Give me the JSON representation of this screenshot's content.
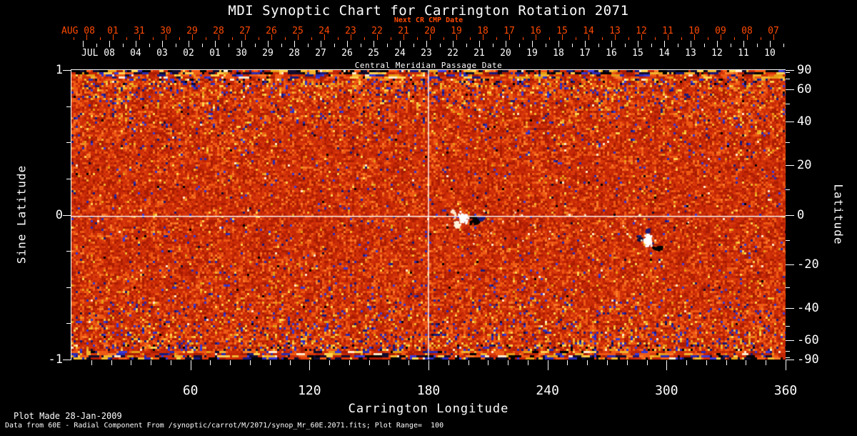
{
  "chart_data": {
    "type": "heatmap",
    "title": "MDI Synoptic Chart for Carrington Rotation 2071",
    "subtitle_red": "Next CR CMP Date",
    "cmp_axis_title": "Central Meridian Passage Date",
    "xlabel": "Carrington Longitude",
    "ylabel_left": "Sine Latitude",
    "ylabel_right": "Latitude",
    "xlim_deg": [
      0,
      360
    ],
    "ylim_sine": [
      1,
      -1
    ],
    "x_major_ticks_deg": [
      60,
      120,
      180,
      240,
      300,
      360
    ],
    "x_tick_labels": [
      "60",
      "120",
      "180",
      "240",
      "300",
      "360"
    ],
    "x_minor_step_deg": 10,
    "left_tick_labels": [
      "1",
      "0",
      "-1"
    ],
    "left_tick_sine_values": [
      1,
      0,
      -1
    ],
    "left_minor_sine_values": [
      0.75,
      0.5,
      0.25,
      -0.25,
      -0.5,
      -0.75
    ],
    "right_tick_labels": [
      "90",
      "60",
      "40",
      "20",
      "0",
      "-20",
      "-40",
      "-60",
      "-90"
    ],
    "right_tick_deg_values": [
      90,
      60,
      40,
      20,
      0,
      -20,
      -40,
      -60,
      -90
    ],
    "right_minor_deg_values": [
      80,
      70,
      50,
      30,
      10,
      -10,
      -30,
      -50,
      -70,
      -80
    ],
    "next_cr_axis": {
      "month_label": "AUG 08",
      "day_labels": [
        "01",
        "31",
        "30",
        "29",
        "28",
        "27",
        "26",
        "25",
        "24",
        "23",
        "22",
        "21",
        "20",
        "19",
        "18",
        "17",
        "16",
        "15",
        "14",
        "13",
        "12",
        "11",
        "10",
        "09",
        "08",
        "07"
      ]
    },
    "cmp_axis": {
      "month_label": "JUL 08",
      "day_labels": [
        "04",
        "03",
        "02",
        "01",
        "30",
        "29",
        "28",
        "27",
        "26",
        "25",
        "24",
        "23",
        "22",
        "21",
        "20",
        "19",
        "18",
        "17",
        "16",
        "15",
        "14",
        "13",
        "12",
        "11",
        "10"
      ]
    },
    "gridlines": {
      "vertical_at_longitude_deg": 180,
      "horizontal_at_latitude_deg": 0
    },
    "plot_range_gauss": 100,
    "colormap_description": "red-orange solar magnetogram noise; yellow/blue speckle increasing toward poles; white = strong positive field, black/navy = strong negative field; dark streaked data gaps at extreme latitudes",
    "features": [
      {
        "name": "active-region-bipole-1",
        "longitude_deg": 197,
        "latitude_deg": -2,
        "description": "white (positive) plage patch with adjacent black (negative) patch straddling the equator line"
      },
      {
        "name": "active-region-bipole-2",
        "longitude_deg": 290,
        "latitude_deg": -10,
        "description": "white (positive) patch with dark (negative) patches to its left and lower right"
      }
    ]
  },
  "footer": {
    "line1": "Plot Made 28-Jan-2009",
    "line2": "Data from 60E - Radial Component From /synoptic/carrot/M/2071/synop_Mr_60E.2071.fits; Plot Range=  100"
  },
  "colors": {
    "background": "#000000",
    "foreground": "#ffffff",
    "accent_red": "#ff4a00",
    "map_base_red": "#c22506",
    "map_orange": "#ef5a14",
    "map_yellow": "#f2b42c",
    "map_blue": "#3a3ad6",
    "map_navy": "#191a7a"
  }
}
